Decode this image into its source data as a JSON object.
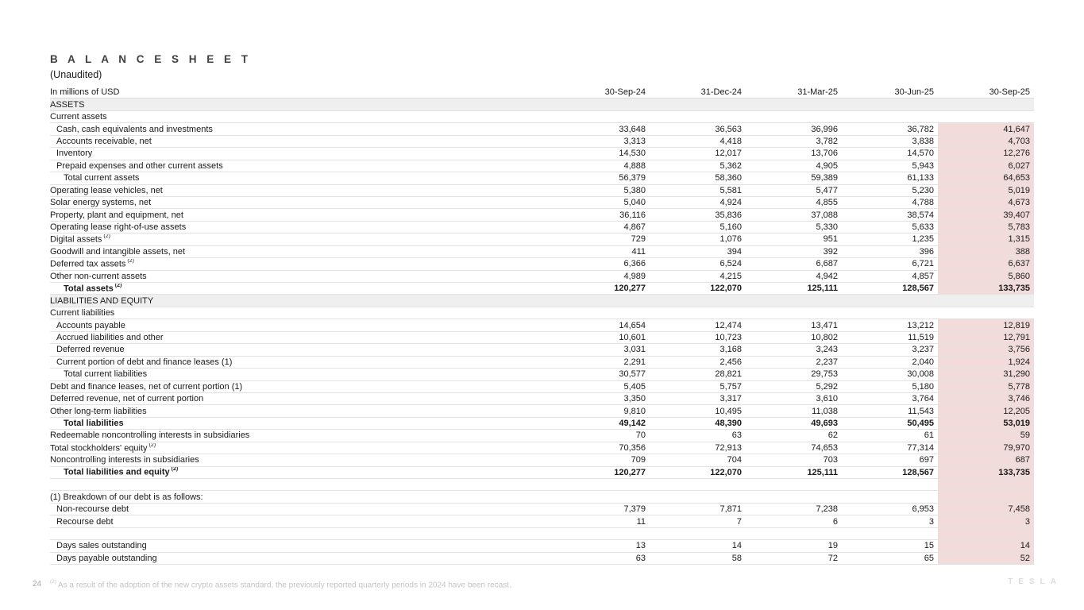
{
  "page": {
    "title": "B A L A N C E   S H E E T",
    "subtitle": "(Unaudited)",
    "page_number": "24",
    "footnote_marker": "(2)",
    "footnote_text": "As a result of the adoption of the new crypto assets standard, the previously reported quarterly periods in 2024 have been recast.",
    "logo_text": "TESLA"
  },
  "table": {
    "unit_label": "In millions of USD",
    "columns": [
      "30-Sep-24",
      "31-Dec-24",
      "31-Mar-25",
      "30-Jun-25",
      "30-Sep-25"
    ],
    "highlight_color": "#f2dcdb",
    "section_color": "#f0efef",
    "rows": [
      {
        "label": "ASSETS",
        "section": true,
        "indent": 0,
        "hl": false,
        "values": []
      },
      {
        "label": "Current assets",
        "indent": 0,
        "hl": false,
        "values": []
      },
      {
        "label": "Cash, cash equivalents and investments",
        "indent": 1,
        "hl": true,
        "values": [
          "33,648",
          "36,563",
          "36,996",
          "36,782",
          "41,647"
        ]
      },
      {
        "label": "Accounts receivable, net",
        "indent": 1,
        "hl": true,
        "values": [
          "3,313",
          "4,418",
          "3,782",
          "3,838",
          "4,703"
        ]
      },
      {
        "label": "Inventory",
        "indent": 1,
        "hl": true,
        "values": [
          "14,530",
          "12,017",
          "13,706",
          "14,570",
          "12,276"
        ]
      },
      {
        "label": "Prepaid expenses and other current assets",
        "indent": 1,
        "hl": true,
        "values": [
          "4,888",
          "5,362",
          "4,905",
          "5,943",
          "6,027"
        ]
      },
      {
        "label": "Total current assets",
        "indent": 2,
        "hl": true,
        "values": [
          "56,379",
          "58,360",
          "59,389",
          "61,133",
          "64,653"
        ]
      },
      {
        "label": "Operating lease vehicles, net",
        "indent": 0,
        "hl": true,
        "values": [
          "5,380",
          "5,581",
          "5,477",
          "5,230",
          "5,019"
        ]
      },
      {
        "label": "Solar energy systems, net",
        "indent": 0,
        "hl": true,
        "values": [
          "5,040",
          "4,924",
          "4,855",
          "4,788",
          "4,673"
        ]
      },
      {
        "label": "Property, plant and equipment, net",
        "indent": 0,
        "hl": true,
        "values": [
          "36,116",
          "35,836",
          "37,088",
          "38,574",
          "39,407"
        ]
      },
      {
        "label": "Operating lease right-of-use assets",
        "indent": 0,
        "hl": true,
        "values": [
          "4,867",
          "5,160",
          "5,330",
          "5,633",
          "5,783"
        ]
      },
      {
        "label": "Digital assets",
        "sup": "(2)",
        "indent": 0,
        "hl": true,
        "values": [
          "729",
          "1,076",
          "951",
          "1,235",
          "1,315"
        ]
      },
      {
        "label": "Goodwill and intangible assets, net",
        "indent": 0,
        "hl": true,
        "values": [
          "411",
          "394",
          "392",
          "396",
          "388"
        ]
      },
      {
        "label": "Deferred tax assets",
        "sup": "(2)",
        "indent": 0,
        "hl": true,
        "values": [
          "6,366",
          "6,524",
          "6,687",
          "6,721",
          "6,637"
        ]
      },
      {
        "label": "Other non-current assets",
        "indent": 0,
        "hl": true,
        "values": [
          "4,989",
          "4,215",
          "4,942",
          "4,857",
          "5,860"
        ]
      },
      {
        "label": "Total assets",
        "sup": "(2)",
        "indent": 2,
        "bold": true,
        "hl": true,
        "values": [
          "120,277",
          "122,070",
          "125,111",
          "128,567",
          "133,735"
        ]
      },
      {
        "label": "LIABILITIES AND EQUITY",
        "section": true,
        "indent": 0,
        "hl": false,
        "values": []
      },
      {
        "label": "Current liabilities",
        "indent": 0,
        "hl": false,
        "values": []
      },
      {
        "label": "Accounts payable",
        "indent": 1,
        "hl": true,
        "values": [
          "14,654",
          "12,474",
          "13,471",
          "13,212",
          "12,819"
        ]
      },
      {
        "label": "Accrued liabilities and other",
        "indent": 1,
        "hl": true,
        "values": [
          "10,601",
          "10,723",
          "10,802",
          "11,519",
          "12,791"
        ]
      },
      {
        "label": "Deferred revenue",
        "indent": 1,
        "hl": true,
        "values": [
          "3,031",
          "3,168",
          "3,243",
          "3,237",
          "3,756"
        ]
      },
      {
        "label": "Current portion of debt and finance leases (1)",
        "indent": 1,
        "hl": true,
        "values": [
          "2,291",
          "2,456",
          "2,237",
          "2,040",
          "1,924"
        ]
      },
      {
        "label": "Total current liabilities",
        "indent": 2,
        "hl": true,
        "values": [
          "30,577",
          "28,821",
          "29,753",
          "30,008",
          "31,290"
        ]
      },
      {
        "label": "Debt and finance leases, net of current portion (1)",
        "indent": 0,
        "hl": true,
        "values": [
          "5,405",
          "5,757",
          "5,292",
          "5,180",
          "5,778"
        ]
      },
      {
        "label": "Deferred revenue, net of current portion",
        "indent": 0,
        "hl": true,
        "values": [
          "3,350",
          "3,317",
          "3,610",
          "3,764",
          "3,746"
        ]
      },
      {
        "label": "Other long-term liabilities",
        "indent": 0,
        "hl": true,
        "values": [
          "9,810",
          "10,495",
          "11,038",
          "11,543",
          "12,205"
        ]
      },
      {
        "label": "Total liabilities",
        "indent": 2,
        "bold": true,
        "hl": true,
        "values": [
          "49,142",
          "48,390",
          "49,693",
          "50,495",
          "53,019"
        ]
      },
      {
        "label": "Redeemable noncontrolling interests in subsidiaries",
        "indent": 0,
        "hl": true,
        "values": [
          "70",
          "63",
          "62",
          "61",
          "59"
        ]
      },
      {
        "label": "Total stockholders' equity",
        "sup": "(2)",
        "indent": 0,
        "hl": true,
        "values": [
          "70,356",
          "72,913",
          "74,653",
          "77,314",
          "79,970"
        ]
      },
      {
        "label": "Noncontrolling interests in subsidiaries",
        "indent": 0,
        "hl": true,
        "values": [
          "709",
          "704",
          "703",
          "697",
          "687"
        ]
      },
      {
        "label": "Total liabilities and equity",
        "sup": "(2)",
        "indent": 2,
        "bold": true,
        "hl": true,
        "values": [
          "120,277",
          "122,070",
          "125,111",
          "128,567",
          "133,735"
        ]
      },
      {
        "label": "",
        "blank": true,
        "indent": 0,
        "hl": true,
        "values": []
      },
      {
        "label": "(1) Breakdown of our debt is as follows:",
        "indent": 0,
        "hl": true,
        "values": []
      },
      {
        "label": "Non-recourse debt",
        "indent": 1,
        "hl": true,
        "values": [
          "7,379",
          "7,871",
          "7,238",
          "6,953",
          "7,458"
        ]
      },
      {
        "label": "Recourse debt",
        "indent": 1,
        "hl": true,
        "values": [
          "11",
          "7",
          "6",
          "3",
          "3"
        ]
      },
      {
        "label": "",
        "blank": true,
        "indent": 0,
        "hl": true,
        "values": []
      },
      {
        "label": "Days sales outstanding",
        "indent": 1,
        "hl": true,
        "values": [
          "13",
          "14",
          "19",
          "15",
          "14"
        ]
      },
      {
        "label": "Days payable outstanding",
        "indent": 1,
        "hl": true,
        "values": [
          "63",
          "58",
          "72",
          "65",
          "52"
        ]
      }
    ]
  }
}
